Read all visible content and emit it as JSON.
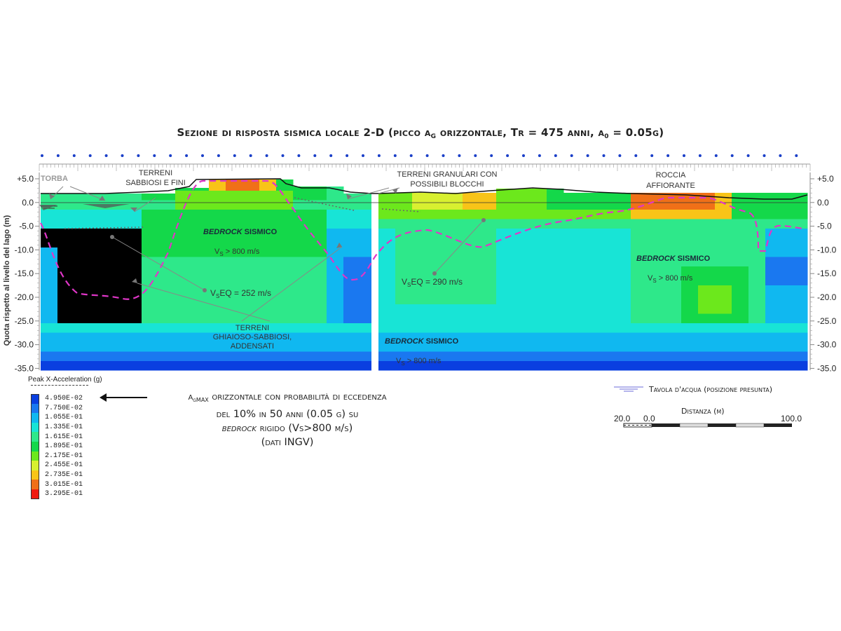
{
  "title": {
    "prefix": "Sezione di risposta sismica locale 2-D (picco a",
    "sub": "G",
    "middle": " orizzontale, Tr = 475 anni, a",
    "sub2": "0",
    "suffix": " = 0.05g)"
  },
  "y_axis": {
    "label": "Quota rispetto al livello del lago (m)",
    "ticks_left": [
      "+5.0",
      "0.0",
      "-5.0",
      "-10.0",
      "-15.0",
      "-20.0",
      "-25.0",
      "-30.0",
      "-35.0"
    ],
    "ticks_right": [
      "+5.0",
      "0.0",
      "-5.0",
      "-10.0",
      "-15.0",
      "-20.0",
      "-25.0",
      "-30.0",
      "-35.0"
    ],
    "range": [
      -35,
      5
    ]
  },
  "annotations": {
    "torba": "TORBA",
    "terreni_sabbiosi_1": "TERRENI",
    "terreni_sabbiosi_2": "SABBIOSI E FINI",
    "terreni_granulari_1": "TERRENI GRANULARI CON",
    "terreni_granulari_2": "POSSIBILI BLOCCHI",
    "roccia_1": "ROCCIA",
    "roccia_2": "AFFIORANTE",
    "bedrock_1_italic": "BEDROCK",
    "bedrock_1_rest": " SISMICO",
    "vs_left": "V",
    "vs_left_sub": "S",
    "vs_left_rest": " > 800 m/s",
    "veq_left": "V",
    "veq_left_sub": "S",
    "veq_left_rest": "EQ =  252 m/s",
    "ghiaiosi_1": "TERRENI",
    "ghiaiosi_2": "GHIAIOSO-SABBIOSI,",
    "ghiaiosi_3": "ADDENSATI",
    "veq_right": "V",
    "veq_right_sub": "S",
    "veq_right_rest": "EQ =  290 m/s",
    "bedrock_2_italic": "BEDROCK",
    "bedrock_2_rest": " SISMICO",
    "vs_right": "V",
    "vs_right_sub": "S",
    "vs_right_rest": " > 800 m/s",
    "bedrock_3_italic": "BEDROCK",
    "bedrock_3_rest": " SISMICO",
    "vs_bottom": "V",
    "vs_bottom_sub": "S",
    "vs_bottom_rest": " > 800 m/s"
  },
  "legend": {
    "title": "Peak X-Acceleration (g)",
    "items": [
      {
        "value": "4.950E-02",
        "color": "#0a3fe0"
      },
      {
        "value": "7.750E-02",
        "color": "#1a78f0"
      },
      {
        "value": "1.055E-01",
        "color": "#10b8f0"
      },
      {
        "value": "1.335E-01",
        "color": "#18e4d6"
      },
      {
        "value": "1.615E-01",
        "color": "#2ee88a"
      },
      {
        "value": "1.895E-01",
        "color": "#14d84a"
      },
      {
        "value": "2.175E-01",
        "color": "#6ce81c"
      },
      {
        "value": "2.455E-01",
        "color": "#d8f030"
      },
      {
        "value": "2.735E-01",
        "color": "#f8c418"
      },
      {
        "value": "3.015E-01",
        "color": "#f07018"
      },
      {
        "value": "3.295E-01",
        "color": "#f01a10"
      }
    ]
  },
  "note": {
    "a": "a",
    "a_sub": "gMAX",
    "line1_rest": " orizzontale con probabilità di eccedenza",
    "line2": "del 10% in 50 anni (0.05 g) su",
    "line3_italic": "bedrock",
    "line3_rest": " rigido (Vs>800 m/s)",
    "line4": "(dati INGV)"
  },
  "water_table": "Tavola d'acqua (posizione presunta)",
  "scale": {
    "title": "Distanza (m)",
    "left": "20.0",
    "zero": "0.0",
    "right": "100.0"
  }
}
